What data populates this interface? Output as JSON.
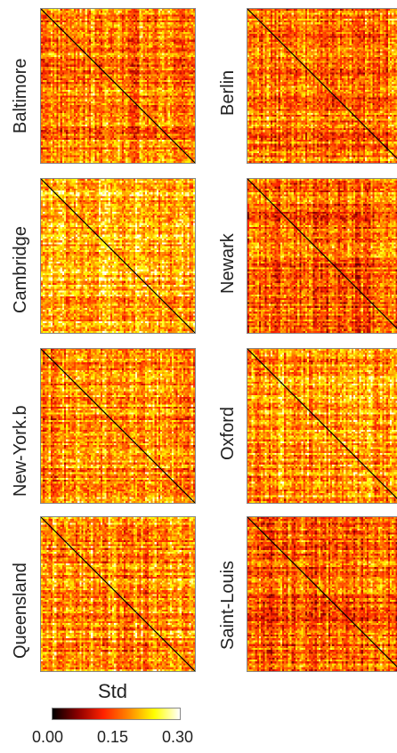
{
  "chart_data": {
    "type": "heatmap",
    "panels": [
      {
        "name": "Baltimore"
      },
      {
        "name": "Berlin"
      },
      {
        "name": "Cambridge"
      },
      {
        "name": "Newark"
      },
      {
        "name": "New-York.b"
      },
      {
        "name": "Oxford"
      },
      {
        "name": "Queensland"
      },
      {
        "name": "Saint-Louis"
      }
    ],
    "colorbar": {
      "title": "Std",
      "ticks": [
        "0.00",
        "0.15",
        "0.30"
      ],
      "range": [
        0.0,
        0.3
      ],
      "colormap": [
        "#000000",
        "#8b0000",
        "#ff2200",
        "#ff8800",
        "#ffff00",
        "#ffffff"
      ]
    },
    "diagonal_color": "#000000"
  }
}
